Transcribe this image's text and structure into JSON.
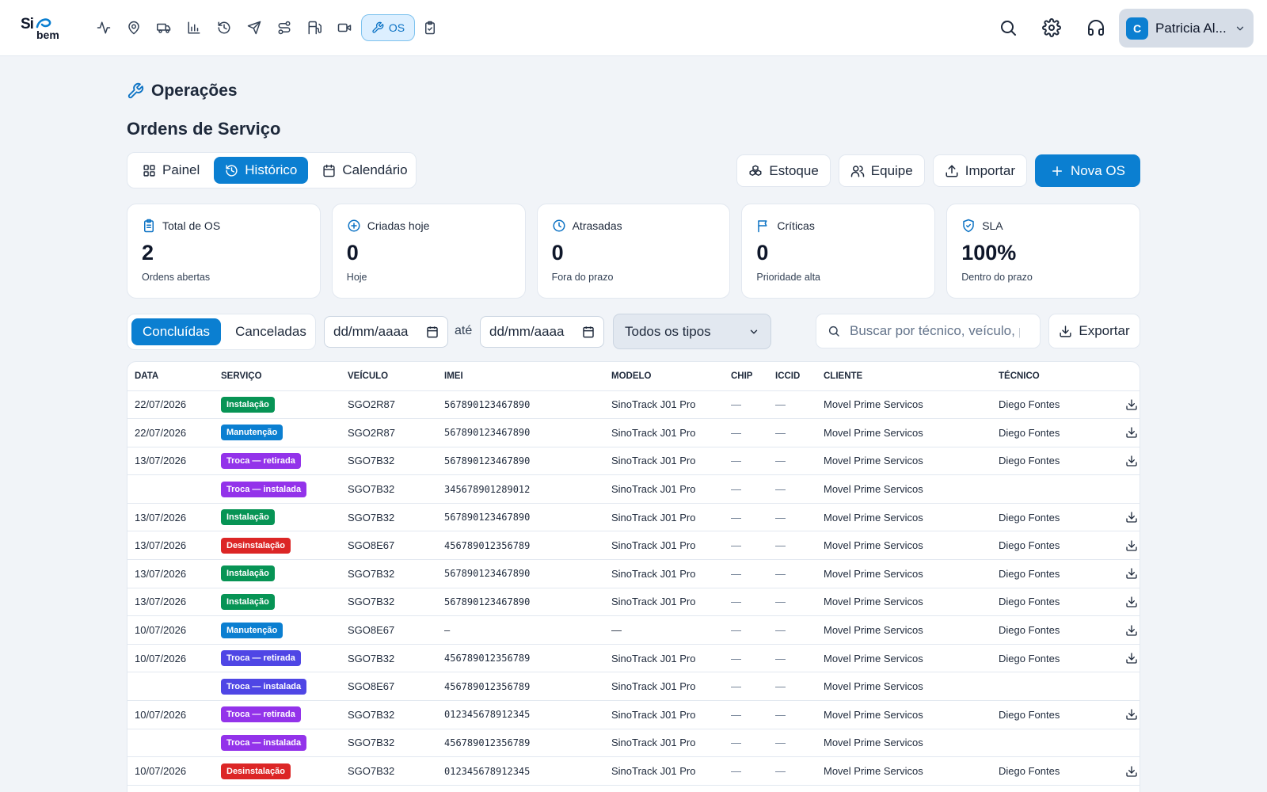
{
  "app": {
    "logo_top": "Si",
    "logo_bottom": "bem",
    "nav_os_label": "OS",
    "user_initial": "C",
    "user_name": "Patricia Al..."
  },
  "nav_icons": [
    "activity-icon",
    "map-pin-icon",
    "truck-icon",
    "bar-chart-icon",
    "history-icon",
    "send-icon",
    "route-icon",
    "fuel-icon",
    "video-icon",
    "wrench-icon",
    "clipboard-check-icon"
  ],
  "header": {
    "section": "Operações",
    "title": "Ordens de Serviço"
  },
  "tabs": {
    "painel": "Painel",
    "historico": "Histórico",
    "calendario": "Calendário"
  },
  "actions": {
    "estoque": "Estoque",
    "equipe": "Equipe",
    "importar": "Importar",
    "nova_os": "Nova OS"
  },
  "stats": [
    {
      "label": "Total de OS",
      "value": "2",
      "sub": "Ordens abertas"
    },
    {
      "label": "Criadas hoje",
      "value": "0",
      "sub": "Hoje"
    },
    {
      "label": "Atrasadas",
      "value": "0",
      "sub": "Fora do prazo"
    },
    {
      "label": "Críticas",
      "value": "0",
      "sub": "Prioridade alta"
    },
    {
      "label": "SLA",
      "value": "100%",
      "sub": "Dentro do prazo"
    }
  ],
  "filters": {
    "concluidas": "Concluídas",
    "canceladas": "Canceladas",
    "date_from": "dd/mm/aaaa",
    "ate": "até",
    "date_to": "dd/mm/aaaa",
    "tipo": "Todos os tipos",
    "search_placeholder": "Buscar por técnico, veículo, p",
    "exportar": "Exportar"
  },
  "table": {
    "columns": [
      "DATA",
      "SERVIÇO",
      "VEÍCULO",
      "IMEI",
      "MODELO",
      "CHIP",
      "ICCID",
      "CLIENTE",
      "TÉCNICO"
    ],
    "rows": [
      {
        "data": "22/07/2026",
        "servico": "Instalação",
        "color": "#079455",
        "veiculo": "SGO2R87",
        "imei": "567890123467890",
        "modelo": "SinoTrack J01 Pro",
        "chip": "—",
        "iccid": "—",
        "cliente": "Movel Prime Servicos",
        "tecnico": "Diego Fontes",
        "download": true
      },
      {
        "data": "22/07/2026",
        "servico": "Manutenção",
        "color": "#0b7fd1",
        "veiculo": "SGO2R87",
        "imei": "567890123467890",
        "modelo": "SinoTrack J01 Pro",
        "chip": "—",
        "iccid": "—",
        "cliente": "Movel Prime Servicos",
        "tecnico": "Diego Fontes",
        "download": true
      },
      {
        "data": "13/07/2026",
        "servico": "Troca — retirada",
        "color": "#9333ea",
        "veiculo": "SGO7B32",
        "imei": "567890123467890",
        "modelo": "SinoTrack J01 Pro",
        "chip": "—",
        "iccid": "—",
        "cliente": "Movel Prime Servicos",
        "tecnico": "Diego Fontes",
        "download": true
      },
      {
        "data": "",
        "servico": "Troca — instalada",
        "color": "#9333ea",
        "veiculo": "SGO7B32",
        "imei": "345678901289012",
        "modelo": "SinoTrack J01 Pro",
        "chip": "—",
        "iccid": "—",
        "cliente": "Movel Prime Servicos",
        "tecnico": "",
        "download": false
      },
      {
        "data": "13/07/2026",
        "servico": "Instalação",
        "color": "#079455",
        "veiculo": "SGO7B32",
        "imei": "567890123467890",
        "modelo": "SinoTrack J01 Pro",
        "chip": "—",
        "iccid": "—",
        "cliente": "Movel Prime Servicos",
        "tecnico": "Diego Fontes",
        "download": true
      },
      {
        "data": "13/07/2026",
        "servico": "Desinstalação",
        "color": "#dc2626",
        "veiculo": "SGO8E67",
        "imei": "456789012356789",
        "modelo": "SinoTrack J01 Pro",
        "chip": "—",
        "iccid": "—",
        "cliente": "Movel Prime Servicos",
        "tecnico": "Diego Fontes",
        "download": true
      },
      {
        "data": "13/07/2026",
        "servico": "Instalação",
        "color": "#079455",
        "veiculo": "SGO7B32",
        "imei": "567890123467890",
        "modelo": "SinoTrack J01 Pro",
        "chip": "—",
        "iccid": "—",
        "cliente": "Movel Prime Servicos",
        "tecnico": "Diego Fontes",
        "download": true
      },
      {
        "data": "13/07/2026",
        "servico": "Instalação",
        "color": "#079455",
        "veiculo": "SGO7B32",
        "imei": "567890123467890",
        "modelo": "SinoTrack J01 Pro",
        "chip": "—",
        "iccid": "—",
        "cliente": "Movel Prime Servicos",
        "tecnico": "Diego Fontes",
        "download": true
      },
      {
        "data": "10/07/2026",
        "servico": "Manutenção",
        "color": "#0b7fd1",
        "veiculo": "SGO8E67",
        "imei": "—",
        "modelo": "—",
        "chip": "—",
        "iccid": "—",
        "cliente": "Movel Prime Servicos",
        "tecnico": "Diego Fontes",
        "download": true
      },
      {
        "data": "10/07/2026",
        "servico": "Troca — retirada",
        "color": "#4f46e5",
        "veiculo": "SGO7B32",
        "imei": "456789012356789",
        "modelo": "SinoTrack J01 Pro",
        "chip": "—",
        "iccid": "—",
        "cliente": "Movel Prime Servicos",
        "tecnico": "Diego Fontes",
        "download": true
      },
      {
        "data": "",
        "servico": "Troca — instalada",
        "color": "#4f46e5",
        "veiculo": "SGO8E67",
        "imei": "456789012356789",
        "modelo": "SinoTrack J01 Pro",
        "chip": "—",
        "iccid": "—",
        "cliente": "Movel Prime Servicos",
        "tecnico": "",
        "download": false
      },
      {
        "data": "10/07/2026",
        "servico": "Troca — retirada",
        "color": "#9333ea",
        "veiculo": "SGO7B32",
        "imei": "012345678912345",
        "modelo": "SinoTrack J01 Pro",
        "chip": "—",
        "iccid": "—",
        "cliente": "Movel Prime Servicos",
        "tecnico": "Diego Fontes",
        "download": true
      },
      {
        "data": "",
        "servico": "Troca — instalada",
        "color": "#9333ea",
        "veiculo": "SGO7B32",
        "imei": "456789012356789",
        "modelo": "SinoTrack J01 Pro",
        "chip": "—",
        "iccid": "—",
        "cliente": "Movel Prime Servicos",
        "tecnico": "",
        "download": false
      },
      {
        "data": "10/07/2026",
        "servico": "Desinstalação",
        "color": "#dc2626",
        "veiculo": "SGO7B32",
        "imei": "012345678912345",
        "modelo": "SinoTrack J01 Pro",
        "chip": "—",
        "iccid": "—",
        "cliente": "Movel Prime Servicos",
        "tecnico": "Diego Fontes",
        "download": true
      },
      {
        "data": "",
        "servico": "",
        "color": "#dc2626",
        "veiculo": "",
        "imei": "",
        "modelo": "",
        "chip": "",
        "iccid": "",
        "cliente": "",
        "tecnico": "",
        "download": true
      }
    ]
  }
}
